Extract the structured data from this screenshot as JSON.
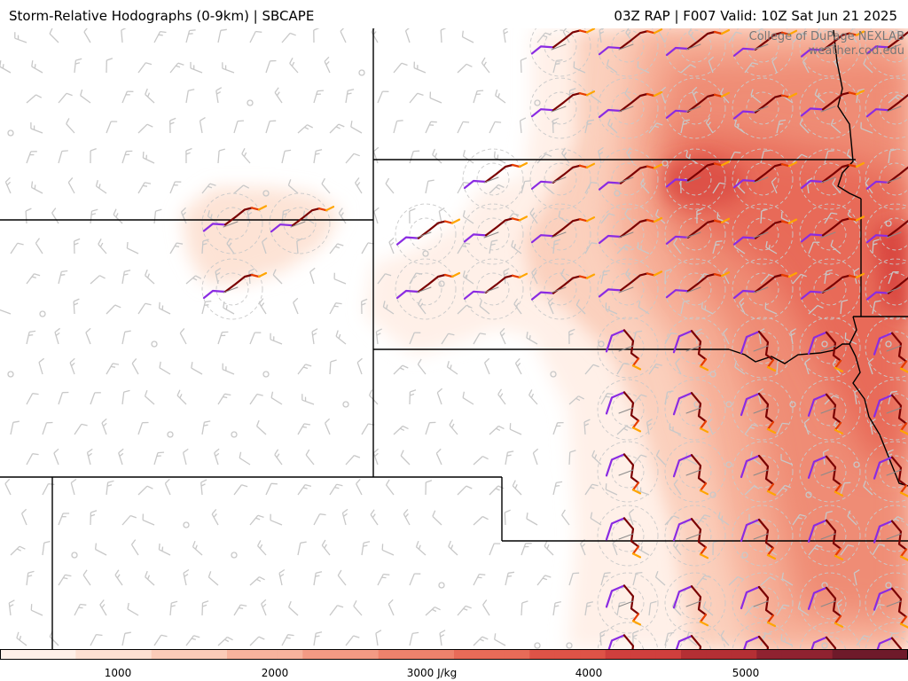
{
  "header": {
    "title_left": "Storm-Relative Hodographs (0-9km) | SBCAPE",
    "title_right": "03Z RAP | F007 Valid: 10Z Sat Jun 21 2025"
  },
  "credits": {
    "line1": "College of DuPage NEXLAB",
    "line2": "weather.cod.edu"
  },
  "colorbar": {
    "labels": [
      "1000",
      "2000",
      "3000 J/kg",
      "4000",
      "5000"
    ],
    "colors": [
      "#fff0e8",
      "#fde0d2",
      "#fbcbb8",
      "#f7b39d",
      "#f39a84",
      "#ee826c",
      "#e86b58",
      "#de5347",
      "#cf3f3d",
      "#b42f34",
      "#8f2230",
      "#6e1a2a"
    ]
  },
  "legend_colors": {
    "hodo_0_1km": "#8a2be2",
    "hodo_1_3km": "#7a0000",
    "hodo_3_6km": "#e63c00",
    "hodo_6_9km": "#ffa500",
    "borders": "#000000",
    "wind_barbs": "#c8c8c8"
  }
}
